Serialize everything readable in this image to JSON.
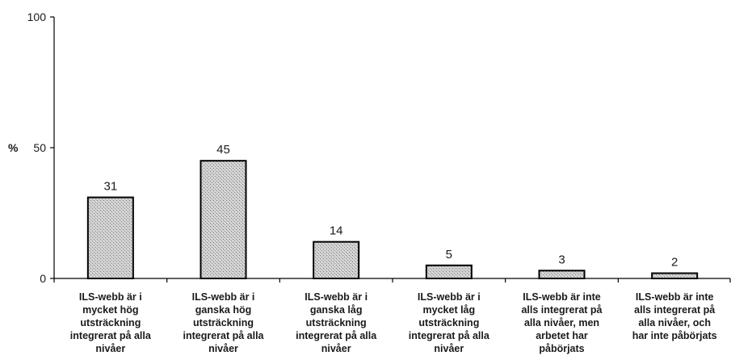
{
  "chart_data": {
    "type": "bar",
    "categories": [
      [
        "ILS-webb är i",
        "mycket hög",
        "utsträckning",
        "integrerat på alla",
        "nivåer"
      ],
      [
        "ILS-webb är i",
        "ganska hög",
        "utsträckning",
        "integrerat på alla",
        "nivåer"
      ],
      [
        "ILS-webb är i",
        "ganska låg",
        "utsträckning",
        "integrerat på alla",
        "nivåer"
      ],
      [
        "ILS-webb är i",
        "mycket låg",
        "utsträckning",
        "integrerat på alla",
        "nivåer"
      ],
      [
        "ILS-webb är inte",
        "alls integrerat på",
        "alla nivåer, men",
        "arbetet har",
        "påbörjats"
      ],
      [
        "ILS-webb är inte",
        "alls integrerat på",
        "alla nivåer, och",
        "har inte påbörjats"
      ]
    ],
    "values": [
      31,
      45,
      14,
      5,
      3,
      2
    ],
    "data_labels": [
      "31",
      "45",
      "14",
      "5",
      "3",
      "2"
    ],
    "ylabel": "%",
    "ylim": [
      0,
      100
    ],
    "yticks": [
      0,
      50,
      100
    ],
    "ytick_labels": [
      "0",
      "50",
      "100"
    ],
    "grid": false,
    "legend": "none",
    "bar_fill": "#c8c8c8",
    "bar_stroke": "#000000"
  }
}
